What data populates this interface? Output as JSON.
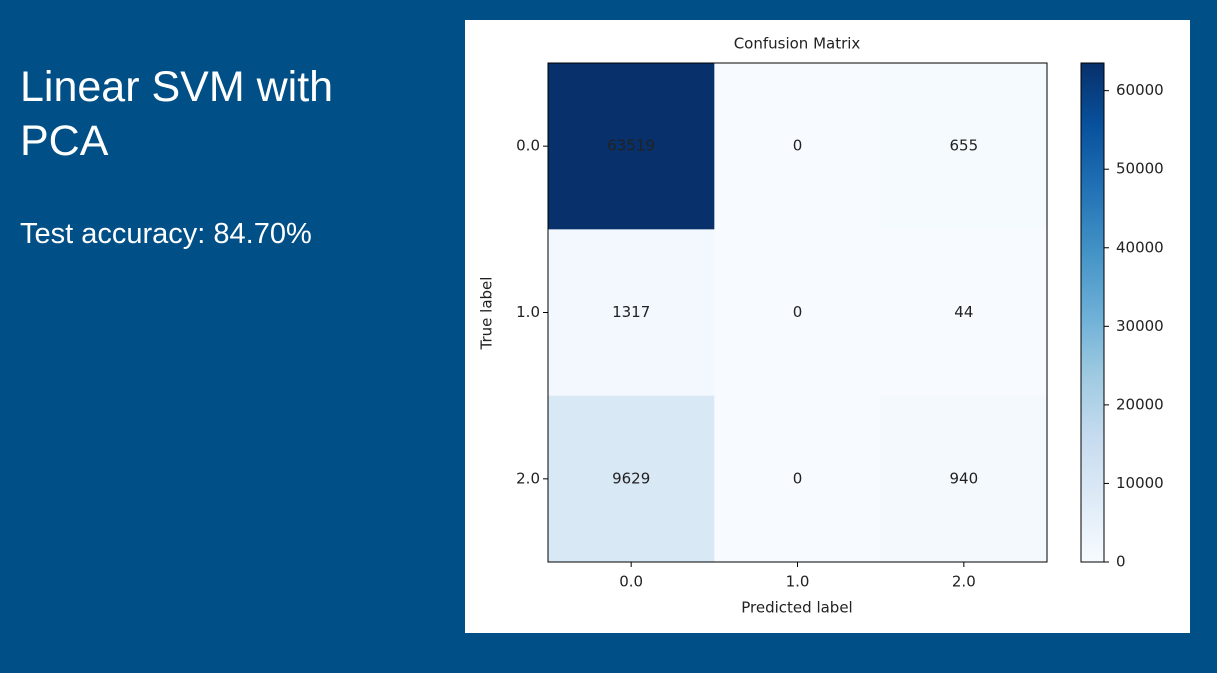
{
  "slide": {
    "title": "Linear SVM with PCA",
    "subtitle": "Test accuracy: 84.70%"
  },
  "chart_data": {
    "type": "heatmap",
    "title": "Confusion Matrix",
    "x_label": "Predicted label",
    "y_label": "True label",
    "x_categories": [
      "0.0",
      "1.0",
      "2.0"
    ],
    "y_categories": [
      "0.0",
      "1.0",
      "2.0"
    ],
    "values": [
      [
        63519,
        0,
        655
      ],
      [
        1317,
        0,
        44
      ],
      [
        9629,
        0,
        940
      ]
    ],
    "clim": [
      0,
      63519
    ],
    "cticks": [
      0,
      10000,
      20000,
      30000,
      40000,
      50000,
      60000
    ],
    "colormap": [
      "#f7fbff",
      "#deebf7",
      "#c6dbef",
      "#9ecae1",
      "#6baed6",
      "#4292c6",
      "#2171b5",
      "#08519c",
      "#08306b"
    ]
  }
}
